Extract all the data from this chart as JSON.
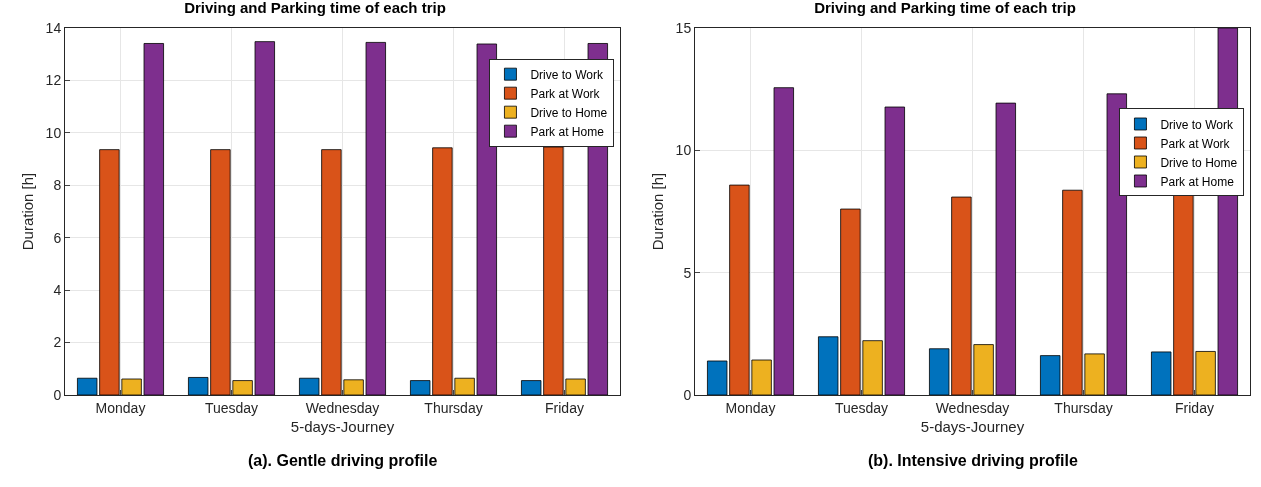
{
  "chart_data": [
    {
      "type": "bar",
      "title": "Driving and Parking time of each trip",
      "xlabel": "5-days-Journey",
      "ylabel": "Duration [h]",
      "categories": [
        "Monday",
        "Tuesday",
        "Wednesday",
        "Thursday",
        "Friday"
      ],
      "series": [
        {
          "name": "Drive to Work",
          "color": "#0072bd",
          "values": [
            0.64,
            0.67,
            0.64,
            0.55,
            0.55
          ]
        },
        {
          "name": "Park at Work",
          "color": "#d95319",
          "values": [
            9.36,
            9.36,
            9.36,
            9.43,
            9.46
          ]
        },
        {
          "name": "Drive to Home",
          "color": "#edb120",
          "values": [
            0.61,
            0.55,
            0.58,
            0.64,
            0.61
          ]
        },
        {
          "name": "Park at Home",
          "color": "#7e2f8e",
          "values": [
            13.41,
            13.48,
            13.45,
            13.39,
            13.41
          ]
        }
      ],
      "ylim": [
        0,
        14
      ],
      "yticks": [
        0,
        2,
        4,
        6,
        8,
        10,
        12,
        14
      ],
      "grid": true,
      "legend": "top right",
      "annotations": [
        "(a). Gentle driving profile"
      ]
    },
    {
      "type": "bar",
      "title": "Driving and Parking time of each trip",
      "xlabel": "5-days-Journey",
      "ylabel": "Duration [h]",
      "categories": [
        "Monday",
        "Tuesday",
        "Wednesday",
        "Thursday",
        "Friday"
      ],
      "series": [
        {
          "name": "Drive to Work",
          "color": "#0072bd",
          "values": [
            1.39,
            2.38,
            1.89,
            1.61,
            1.76
          ]
        },
        {
          "name": "Park at Work",
          "color": "#d95319",
          "values": [
            8.58,
            7.6,
            8.09,
            8.37,
            8.25
          ]
        },
        {
          "name": "Drive to Home",
          "color": "#edb120",
          "values": [
            1.43,
            2.22,
            2.06,
            1.68,
            1.78
          ]
        },
        {
          "name": "Park at Home",
          "color": "#7e2f8e",
          "values": [
            12.56,
            11.77,
            11.93,
            12.31,
            15
          ]
        }
      ],
      "ylim": [
        0,
        15
      ],
      "yticks": [
        0,
        5,
        10,
        15
      ],
      "grid": true,
      "legend": "top right",
      "annotations": [
        "(b). Intensive driving profile"
      ]
    }
  ]
}
